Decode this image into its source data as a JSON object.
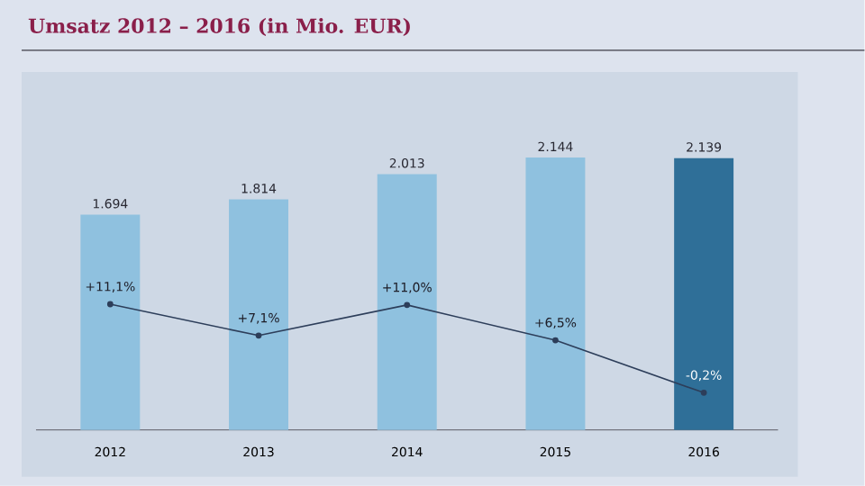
{
  "chart_data": {
    "type": "bar",
    "title": "Umsatz 2012 – 2016 (in Mio. EUR)",
    "categories": [
      "2012",
      "2013",
      "2014",
      "2015",
      "2016"
    ],
    "series": [
      {
        "colors": [
          "#8fc1df",
          "#8fc1df",
          "#8fc1df",
          "#8fc1df",
          "#2f6f98"
        ],
        "values": [
          1694,
          1814,
          2013,
          2144,
          2139
        ],
        "value_labels": [
          "1.694",
          "1.814",
          "2.013",
          "2.144",
          "2.139"
        ]
      },
      {
        "type": "line",
        "axis": "y2",
        "color": "#2d3e5a",
        "values": [
          11.1,
          7.1,
          11.0,
          6.5,
          -0.2
        ],
        "value_labels": [
          "+11,1%",
          "+7,1%",
          "+11,0%",
          "+6,5%",
          "-0,2%"
        ]
      }
    ],
    "tick_labels": "x",
    "marker": "circle"
  }
}
